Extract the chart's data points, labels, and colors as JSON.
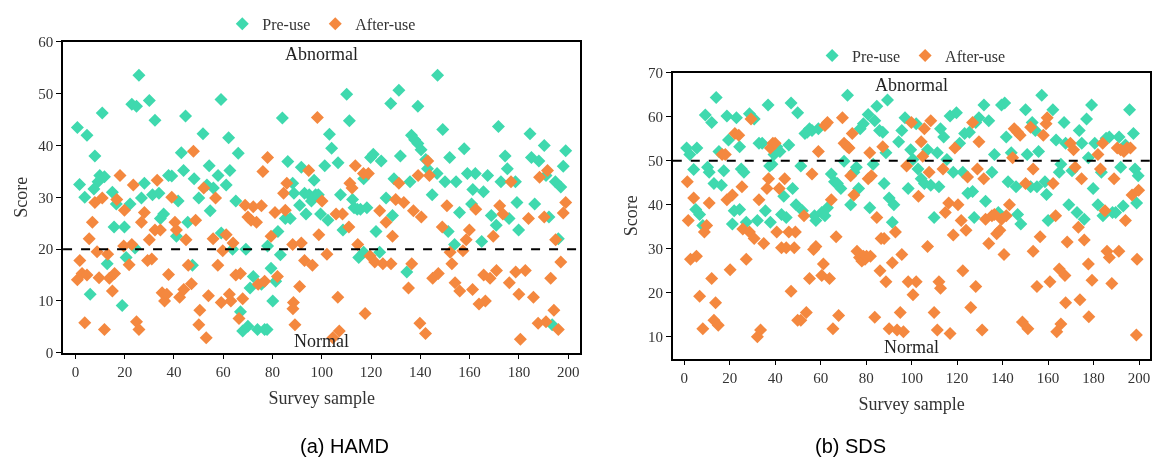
{
  "chart_data": [
    {
      "type": "scatter",
      "title": "(a) HAMD",
      "xlabel": "Survey sample",
      "ylabel": "Score",
      "xlim": [
        -5,
        205
      ],
      "xticks": [
        0,
        20,
        40,
        60,
        80,
        100,
        120,
        140,
        160,
        180,
        200
      ],
      "ylim": [
        0,
        60
      ],
      "yticks": [
        0,
        10,
        20,
        30,
        40,
        50,
        60
      ],
      "marker": "diamond",
      "legend": "top",
      "ref_lines": [
        {
          "axis": "y",
          "value": 20,
          "line_style": "dashed",
          "color": "#000000"
        }
      ],
      "annotations": [
        "Abnormal",
        "Normal"
      ],
      "series": [
        {
          "name": "Pre-use",
          "color": "#3fd9ae",
          "x": [
            0.8,
            1.7,
            4.7,
            3.8,
            7.9,
            6,
            7.5,
            9.2,
            10.9,
            9.9,
            11.8,
            12.9,
            15,
            15.7,
            16.6,
            19,
            19.9,
            20.6,
            22.2,
            22.9,
            24.8,
            25.8,
            24.2,
            28,
            26.8,
            30,
            31.3,
            32.3,
            33.9,
            34.5,
            35.8,
            37.8,
            39.1,
            41.7,
            41,
            43,
            43.9,
            44.7,
            45.6,
            47.5,
            48.2,
            50.1,
            51.8,
            53.4,
            54.3,
            54.7,
            56,
            57.9,
            59.1,
            59.2,
            61.2,
            62.2,
            62.7,
            63.8,
            65.1,
            66.1,
            67,
            67.9,
            70,
            69.2,
            70.9,
            72.2,
            73.9,
            75.5,
            76.8,
            77.8,
            78,
            79.4,
            80.1,
            81.3,
            82.2,
            83.2,
            84,
            85.2,
            86.2,
            88.2,
            88.7,
            87.2,
            91,
            91.7,
            93,
            93.6,
            94.9,
            95.8,
            96.9,
            97.5,
            98.6,
            99.5,
            101.2,
            102.5,
            103.1,
            104,
            106.6,
            107.6,
            108.6,
            110.1,
            111.2,
            112.5,
            113.1,
            114.4,
            115.7,
            117,
            118.3,
            115,
            117,
            119.8,
            120.9,
            124.1,
            122,
            123.5,
            126.1,
            128,
            129.3,
            131.3,
            131.9,
            128.7,
            134.5,
            135.8,
            136.4,
            137.7,
            139,
            139,
            140.3,
            142.2,
            142.9,
            144.8,
            146.8,
            147,
            149.1,
            150,
            151.3,
            151.9,
            154.5,
            153.9,
            155.9,
            157.8,
            159.1,
            160.8,
            161.3,
            162.3,
            164.9,
            165.6,
            167.3,
            168.8,
            170.8,
            171.7,
            172.7,
            174.4,
            175.3,
            176,
            178.6,
            179.2,
            179.9,
            184.5,
            185.1,
            186.4,
            188.1,
            190.3,
            191,
            192.2,
            193.5,
            194.8,
            196,
            197,
            198,
            199
          ],
          "values": [
            43.5,
            32.5,
            42,
            30,
            38,
            11.3,
            31.6,
            33,
            46.3,
            34.2,
            34,
            17.2,
            31,
            24.3,
            28.7,
            9.1,
            24.3,
            18.4,
            28.7,
            48,
            47.6,
            53.6,
            20.2,
            32.7,
            29.9,
            48.7,
            30.5,
            44.9,
            30.8,
            25.9,
            26.8,
            34.2,
            34.1,
            29.3,
            22.5,
            38.6,
            35.2,
            45.7,
            25.2,
            16.9,
            33.6,
            29.9,
            42.3,
            32.4,
            36.1,
            27.4,
            31.8,
            34.2,
            48.9,
            23.1,
            32.4,
            41.5,
            35.2,
            20,
            29.3,
            38.5,
            7.9,
            4.2,
            5.1,
            20,
            12.5,
            14.7,
            4.5,
            13.2,
            4.5,
            4.5,
            20.6,
            16.3,
            10,
            13.8,
            23.4,
            18.9,
            45.3,
            25.9,
            36.9,
            32.7,
            30.8,
            25.9,
            28.5,
            35.8,
            30.8,
            26.8,
            30.5,
            29.3,
            33.3,
            30.5,
            30.5,
            26.8,
            36.1,
            25.6,
            42.2,
            39.5,
            36.7,
            30.5,
            23.7,
            49.9,
            44.8,
            29.6,
            28,
            27.7,
            27.7,
            33.6,
            28,
            18.4,
            19.4,
            37.7,
            38.3,
            37,
            23.4,
            19.4,
            29.9,
            48.1,
            33.6,
            50.7,
            38,
            26.5,
            15.6,
            33,
            42,
            41.1,
            47.6,
            40.4,
            39.2,
            37.3,
            35.5,
            30.5,
            34.6,
            53.6,
            43.1,
            33,
            23.4,
            37.7,
            33,
            20.9,
            27.1,
            39.4,
            34.6,
            28.7,
            31.5,
            34.6,
            21.5,
            31.1,
            34.2,
            26.5,
            24.6,
            43.7,
            33,
            38,
            35.5,
            25.9,
            33,
            29,
            23.7,
            42.3,
            37.7,
            28.7,
            37,
            40,
            34.2,
            26.2,
            5.4,
            33,
            22,
            32,
            36,
            39
          ]
        },
        {
          "name": "After-use",
          "color": "#f4883f",
          "x": [
            0.8,
            1.8,
            2.7,
            3.8,
            4.7,
            5.6,
            6.9,
            7.9,
            8.8,
            9.6,
            10.9,
            11.8,
            13.1,
            13.8,
            15,
            15.9,
            16.8,
            18.1,
            19.6,
            19.9,
            21.8,
            22.9,
            23.5,
            24.8,
            25.8,
            26.8,
            28,
            29.3,
            30,
            31,
            32.3,
            33.2,
            34.5,
            35.2,
            36.2,
            37.1,
            37.8,
            39.1,
            40.4,
            41,
            42.3,
            44,
            44.9,
            45.8,
            47.9,
            47.1,
            48.8,
            50.5,
            50.1,
            52.1,
            53.1,
            54,
            55.9,
            56.9,
            57.8,
            59.2,
            59.8,
            61.2,
            62.5,
            63.1,
            64,
            65.1,
            66.4,
            67,
            67.9,
            68.9,
            70,
            71.3,
            72.2,
            73.5,
            74.2,
            75.5,
            76.1,
            76.8,
            78,
            79.4,
            81,
            82,
            84.5,
            85.8,
            85.2,
            88.2,
            88.5,
            89.1,
            88.3,
            91,
            91.7,
            93,
            94.7,
            96.2,
            98.2,
            98.8,
            100.1,
            102.1,
            106.5,
            107.1,
            104.5,
            105.8,
            108.4,
            111,
            112.3,
            113.6,
            111.4,
            114.6,
            116.9,
            118.9,
            117.6,
            119.6,
            121.5,
            123.5,
            124.8,
            126.1,
            128.1,
            128.7,
            130,
            131.3,
            133.3,
            135.2,
            136.5,
            137.2,
            139.1,
            139.8,
            140.4,
            142.1,
            143,
            143.7,
            145,
            147.3,
            148.9,
            150.8,
            152.1,
            152.8,
            154.1,
            156,
            157.3,
            158.6,
            159.9,
            161.2,
            162.5,
            163.8,
            165.7,
            166.4,
            168.3,
            169.6,
            170.9,
            172.2,
            173.5,
            176.1,
            176.8,
            178.7,
            180.6,
            180,
            182.6,
            183.9,
            185.9,
            187.8,
            188.4,
            190.3,
            191,
            191.6,
            192.9,
            194.2,
            194.9,
            196,
            197,
            198,
            199
          ],
          "values": [
            14.1,
            17.8,
            15.3,
            5.8,
            15,
            22,
            25.2,
            29,
            19.5,
            14.5,
            29.9,
            4.5,
            19,
            14.4,
            11.9,
            15.3,
            29.6,
            34.2,
            20.6,
            27.5,
            17,
            20.9,
            32.4,
            6,
            4.5,
            25.2,
            27.1,
            17.8,
            21.8,
            18.1,
            23.7,
            33.3,
            23.7,
            11.6,
            10,
            11.3,
            15.1,
            30,
            25.2,
            23.7,
            10.7,
            12.2,
            21.8,
            16.9,
            38.9,
            13.3,
            25.6,
            8.2,
            5.4,
            31.8,
            2.9,
            11,
            22,
            29.9,
            16.9,
            9.7,
            19.7,
            22.8,
            11.3,
            10,
            21.2,
            15,
            6.6,
            15.3,
            10.4,
            28.5,
            26.2,
            25.6,
            28.2,
            25.2,
            13.2,
            28.4,
            35,
            13.8,
            37.7,
            22.5,
            27.1,
            14.7,
            30.8,
            32.7,
            27.5,
            20.9,
            9.7,
            5.4,
            8.5,
            12.8,
            21.2,
            17.8,
            35.2,
            16.9,
            45.4,
            22.8,
            29.3,
            19,
            10.7,
            4.2,
            2.9,
            26.8,
            26.8,
            24.3,
            31.8,
            36.1,
            32.7,
            20.9,
            34.6,
            34.6,
            7.6,
            18.7,
            17.5,
            27.4,
            17.2,
            25.2,
            17.2,
            22.5,
            29.6,
            32.7,
            29,
            12.5,
            17.2,
            27.4,
            34.2,
            5.7,
            26.2,
            3.7,
            37,
            34.2,
            14.4,
            15.3,
            24.3,
            28.4,
            19.4,
            17.2,
            13.5,
            11.9,
            19.7,
            21.8,
            23.7,
            12.2,
            27.7,
            9.4,
            15,
            10,
            14.4,
            22.5,
            15.9,
            28.4,
            26.8,
            13.5,
            33,
            15.6,
            2.6,
            11.3,
            15.9,
            25.9,
            10.7,
            5.7,
            33.9,
            26.2,
            6,
            35.2,
            14.4,
            8.2,
            21.8,
            4.5,
            17.5,
            27,
            29
          ]
        }
      ]
    },
    {
      "type": "scatter",
      "title": "(b) SDS",
      "xlabel": "Survey sample",
      "ylabel": "Score",
      "xlim": [
        -5,
        205
      ],
      "xticks": [
        0,
        20,
        40,
        60,
        80,
        100,
        120,
        140,
        160,
        180,
        200
      ],
      "ylim": [
        5,
        70
      ],
      "yticks": [
        10,
        20,
        30,
        40,
        50,
        60,
        70
      ],
      "marker": "diamond",
      "legend": "top",
      "ref_lines": [
        {
          "axis": "y",
          "value": 50,
          "line_style": "dashed",
          "color": "#000000"
        }
      ],
      "annotations": [
        "Abnormal",
        "Normal"
      ],
      "series": [
        {
          "name": "Pre-use",
          "color": "#3fd9ae",
          "x": [
            1.1,
            2.5,
            4.2,
            5.6,
            5.1,
            6.8,
            8.2,
            9.3,
            10.3,
            11,
            12.1,
            13.1,
            14.1,
            15.3,
            16.4,
            17.4,
            19.5,
            18.8,
            21.2,
            22,
            23,
            24.4,
            25.1,
            26.3,
            24.4,
            27.3,
            28.7,
            30.8,
            32.2,
            32.9,
            34.3,
            35.7,
            36.9,
            37.6,
            38.6,
            37.9,
            39.5,
            40.7,
            42.1,
            43.8,
            42.8,
            44.9,
            46,
            47,
            47.7,
            49.2,
            49.9,
            51.3,
            52,
            53.1,
            54.1,
            55.1,
            56.2,
            57.3,
            57.9,
            59,
            60.5,
            61.9,
            63,
            64.7,
            66.1,
            67.4,
            68.9,
            70.3,
            71.8,
            73.2,
            74.6,
            75.7,
            76.7,
            77.4,
            78.8,
            80.9,
            81.6,
            83.1,
            83.8,
            84.7,
            85.9,
            89.4,
            87.3,
            88.7,
            87.9,
            90.1,
            92.2,
            91.5,
            94.3,
            95.7,
            97.1,
            98.5,
            99.6,
            100.6,
            102,
            102.8,
            104.2,
            105.6,
            107,
            108.4,
            109.9,
            111.3,
            112,
            112.7,
            114.1,
            115.5,
            116.9,
            118.3,
            119.7,
            121.1,
            122.5,
            123.3,
            124.7,
            125.4,
            126.8,
            128.2,
            127.5,
            129.6,
            131.8,
            132.5,
            133.9,
            135.3,
            136.4,
            138.1,
            139.5,
            140.9,
            141.6,
            142.4,
            143.8,
            145.9,
            146.6,
            148,
            150.1,
            150.8,
            152.3,
            153,
            154.4,
            155.1,
            155.8,
            157.2,
            158.6,
            159.3,
            160,
            162.1,
            163.5,
            164.9,
            165.6,
            167,
            167.7,
            169.1,
            170.5,
            172.7,
            173.7,
            174.8,
            175.9,
            176.9,
            177.7,
            179.1,
            179.8,
            180.5,
            181.9,
            183.4,
            184.1,
            185.5,
            186.9,
            188.3,
            189.7,
            191.2,
            191.9,
            193,
            194,
            195.8,
            197.5,
            198.2,
            199.6,
            198.9
          ],
          "values": [
            52.9,
            51.4,
            48,
            52.9,
            38.9,
            37.8,
            35.3,
            60.4,
            48.5,
            47.4,
            58.7,
            44.8,
            64.4,
            52.1,
            44.4,
            47.7,
            54.7,
            60.2,
            35.6,
            38.6,
            59.8,
            53.2,
            48.1,
            47.4,
            38.9,
            36,
            60.7,
            59.5,
            36.4,
            54,
            54,
            38.6,
            62.7,
            48.8,
            49.2,
            36,
            51.4,
            53.2,
            52.1,
            41.9,
            37.8,
            37.1,
            53.6,
            63.1,
            43.7,
            40,
            60.9,
            48.8,
            38.6,
            56.2,
            56.5,
            57.3,
            56.9,
            37.5,
            36.4,
            57.3,
            38.2,
            37.5,
            39.3,
            47,
            45.2,
            44.8,
            43.7,
            49.9,
            64.9,
            40,
            47.4,
            48.5,
            43.7,
            57.3,
            58.4,
            60.5,
            39.3,
            49.2,
            59.1,
            62.4,
            56.9,
            63.8,
            56.5,
            51.8,
            44.8,
            41.5,
            40,
            36,
            54.3,
            56.9,
            59.8,
            43.7,
            52.5,
            50.3,
            58.4,
            48.1,
            45.9,
            44.8,
            52.5,
            44.4,
            37.1,
            51.8,
            44.1,
            57.3,
            55.4,
            50.3,
            60.2,
            47.4,
            60.9,
            54,
            47.4,
            56.2,
            42.6,
            56.5,
            43,
            58.7,
            37.1,
            59.8,
            62.7,
            40.8,
            59.1,
            47.4,
            51.4,
            38.2,
            62.7,
            63.1,
            55.4,
            45.2,
            51.8,
            44.1,
            37.8,
            35.6,
            61.6,
            51.4,
            44.1,
            58.7,
            56.9,
            44.1,
            52.1,
            64.9,
            45.2,
            42.3,
            36.4,
            61.6,
            54.7,
            47.4,
            49.2,
            58.7,
            54,
            40,
            47.7,
            38.2,
            56.9,
            54,
            36.7,
            59.5,
            50.7,
            62.7,
            43.7,
            54,
            40,
            47.4,
            37.5,
            55.1,
            55.4,
            38.2,
            38.2,
            55.4,
            48.5,
            39.7,
            53.6,
            61.6,
            56.2,
            48.1,
            46.6,
            40.4
          ]
        },
        {
          "name": "After-use",
          "color": "#f4883f",
          "x": [
            1.4,
            1.8,
            2.8,
            4.2,
            5.4,
            6.8,
            8.2,
            8.9,
            9.9,
            11,
            12.1,
            13.1,
            13.8,
            15,
            16.7,
            18.1,
            18.8,
            20.2,
            21.2,
            22.3,
            24,
            25.4,
            25.8,
            27.3,
            28.7,
            29.4,
            30.8,
            32.2,
            32.9,
            33.6,
            35,
            36.4,
            37.1,
            37.9,
            39,
            40,
            40.7,
            41.8,
            42.8,
            44.2,
            44.9,
            46,
            47,
            48.4,
            48.9,
            49.9,
            51.3,
            52.7,
            53.7,
            55.1,
            56.2,
            56.9,
            57.9,
            59,
            60.5,
            61.2,
            61.9,
            63,
            63.9,
            64.7,
            65.4,
            66.8,
            67.9,
            69.6,
            70.3,
            71.8,
            72.5,
            73.2,
            73.9,
            74.6,
            76,
            77.1,
            78.1,
            78.8,
            79.5,
            80.2,
            81.9,
            80.9,
            81.6,
            82.3,
            83.8,
            84.7,
            86.1,
            86.6,
            87.3,
            87.9,
            88.7,
            90.1,
            91.5,
            92.9,
            93.6,
            95,
            95.7,
            96.4,
            97.8,
            98.5,
            99.9,
            100.6,
            102,
            103,
            104.2,
            104.9,
            105.6,
            107,
            107.7,
            108.4,
            109.9,
            111.3,
            112,
            112.7,
            113.8,
            114.8,
            116.3,
            116.9,
            118.3,
            119,
            120.4,
            121.8,
            122.5,
            123.9,
            124.6,
            126,
            126.8,
            128.2,
            128.9,
            129.6,
            131,
            131.7,
            132.5,
            133.9,
            135.3,
            136.4,
            137.4,
            138.8,
            139.5,
            140.6,
            141.6,
            143,
            144.4,
            145.1,
            146.6,
            147.7,
            148.7,
            150.1,
            151.1,
            152.3,
            153.4,
            153.4,
            155.1,
            156.5,
            157.9,
            159.1,
            159.6,
            160.8,
            162.2,
            163.3,
            163.8,
            164.9,
            165.6,
            167.4,
            167.7,
            168.4,
            169.8,
            171.2,
            171.9,
            173.3,
            174,
            174.7,
            175.9,
            177.7,
            177.9,
            179.3,
            181.9,
            183,
            184,
            185,
            185.9,
            186.9,
            188,
            189,
            190.4,
            191.1,
            191.9,
            193.3,
            194.7,
            194,
            196.2,
            196.9,
            198.8,
            199.1,
            199.8
          ],
          "values": [
            45.2,
            36.4,
            27.6,
            41.5,
            28.3,
            19.2,
            11.8,
            33.8,
            35.3,
            40.4,
            23.2,
            13.7,
            17.7,
            12.6,
            51.4,
            51.4,
            41.1,
            25.2,
            42.2,
            56.2,
            55.8,
            44.1,
            34.5,
            27.6,
            33.8,
            59.5,
            32.3,
            10,
            41.1,
            11.5,
            31.2,
            43.7,
            45.9,
            52.9,
            54,
            54,
            33.8,
            43.7,
            30.2,
            45.9,
            30.2,
            33.8,
            20.3,
            30.2,
            33.8,
            13.7,
            13.7,
            37.5,
            15.5,
            23.2,
            47,
            29.8,
            30.5,
            52.1,
            23.9,
            26.5,
            58,
            58.7,
            23.2,
            41.1,
            11.8,
            32.7,
            14.8,
            59.8,
            54,
            53.2,
            52.9,
            46.6,
            56.2,
            42.2,
            29.4,
            28,
            27.2,
            28.3,
            27.6,
            28.3,
            28.3,
            45.9,
            51.8,
            46.6,
            14.4,
            37.1,
            25,
            32.3,
            53.2,
            32.3,
            22.5,
            11.8,
            26.8,
            33.8,
            11.5,
            15.5,
            28.7,
            11.1,
            48.8,
            22.5,
            58.7,
            19.5,
            22.5,
            41.9,
            54.3,
            51,
            57.3,
            30.5,
            47.4,
            59.1,
            15.5,
            11.5,
            22.5,
            21,
            48.1,
            38.2,
            40.4,
            10.7,
            33.1,
            52.9,
            40,
            36.4,
            25,
            34.2,
            46.3,
            16.6,
            58.7,
            21.4,
            48.1,
            54.3,
            11.5,
            45.9,
            36.7,
            31.2,
            37.5,
            37.8,
            33.4,
            34.2,
            36.7,
            28.7,
            37.5,
            40,
            50.7,
            57.3,
            56.5,
            55.8,
            13.3,
            44.8,
            11.8,
            57.6,
            48.1,
            29.4,
            21.4,
            32.7,
            55.8,
            58.4,
            59.8,
            22.5,
            44.8,
            37.5,
            11.1,
            25.4,
            12.9,
            23.9,
            17.7,
            31.5,
            54,
            52.5,
            48.5,
            34.9,
            18.4,
            45.9,
            32,
            26.5,
            14.5,
            22.8,
            51.4,
            48.1,
            54,
            38.6,
            29.4,
            28,
            22.1,
            45.9,
            52.9,
            29.4,
            52.5,
            52.1,
            52.9,
            36.4,
            52.9,
            42.2,
            10.4,
            27.6,
            43.3
          ]
        }
      ]
    }
  ]
}
